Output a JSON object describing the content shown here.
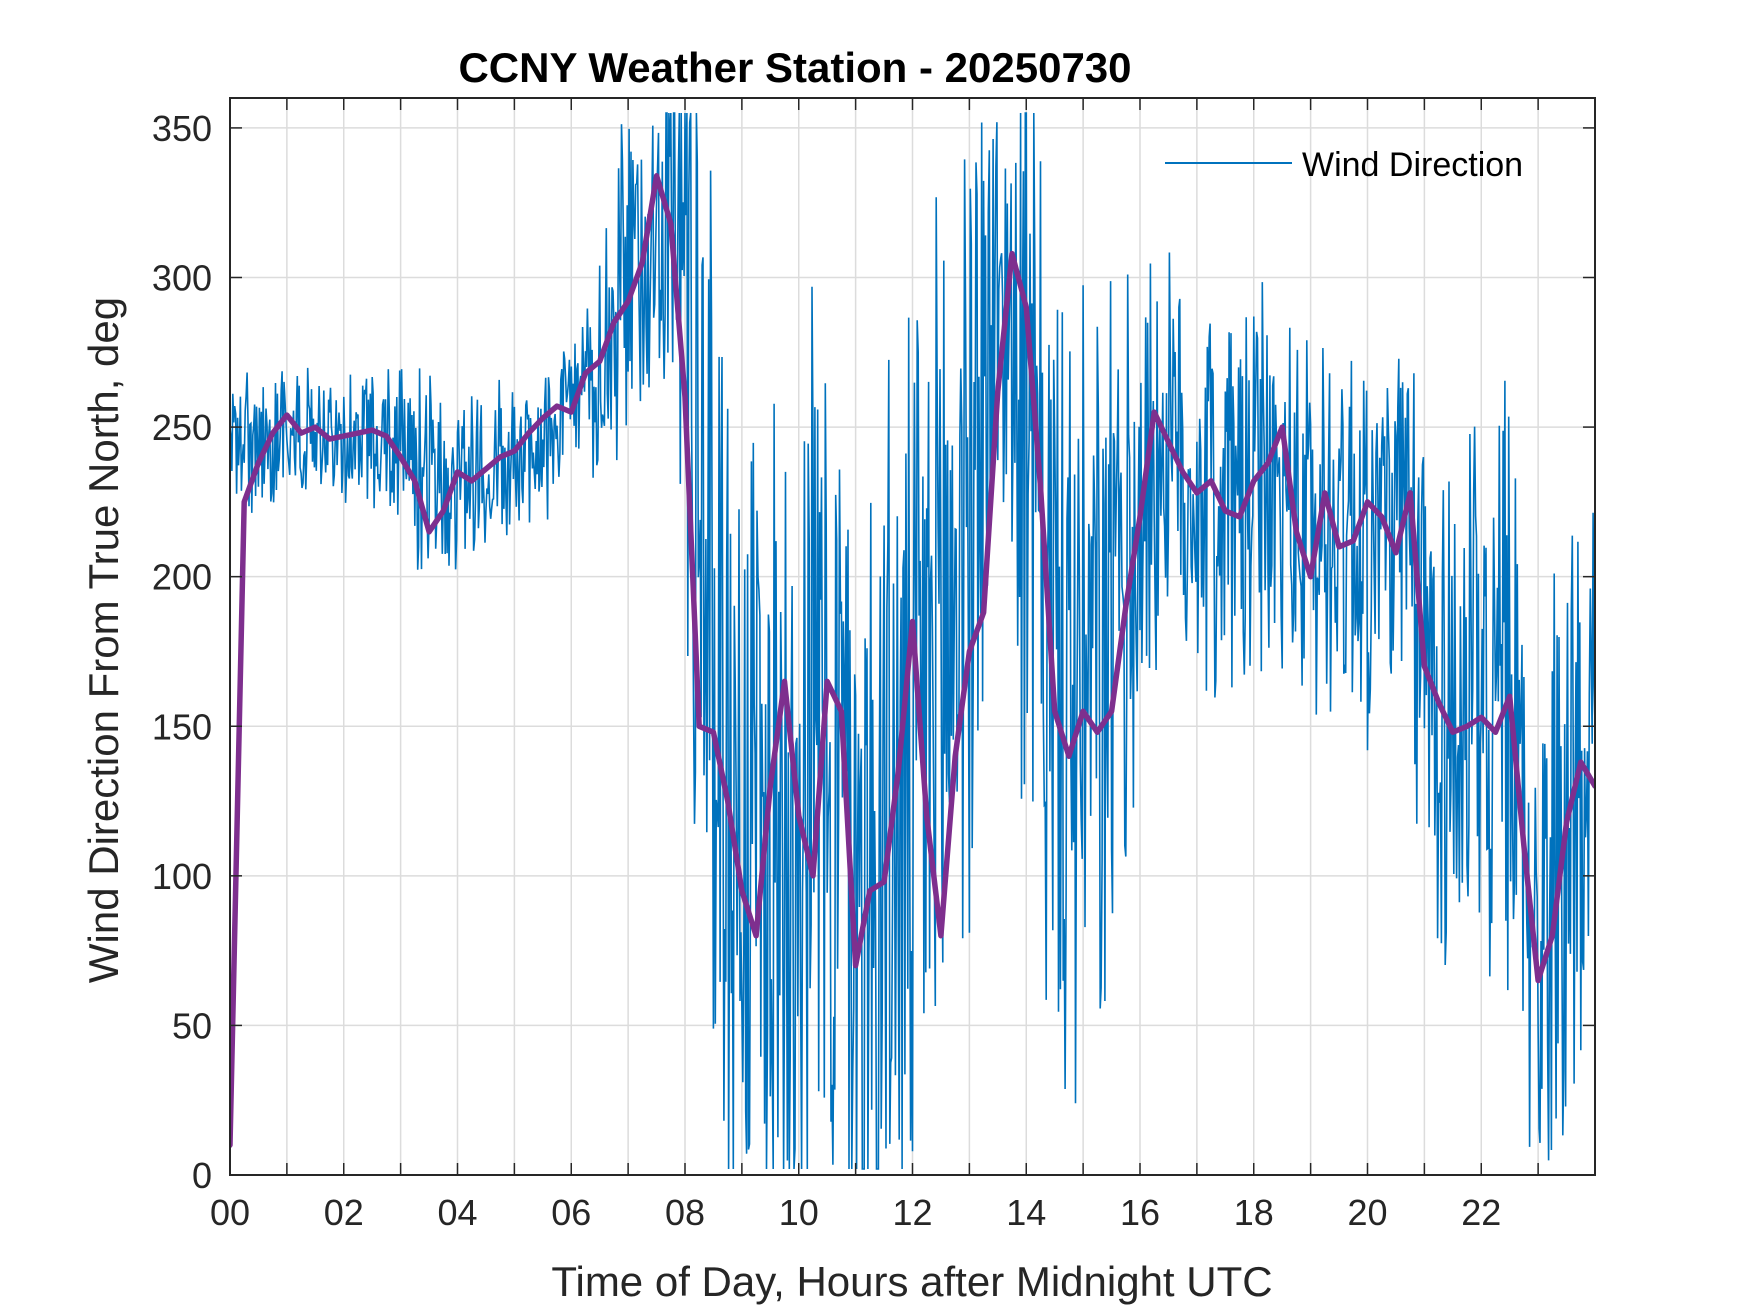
{
  "chart_data": {
    "type": "line",
    "title": "CCNY Weather Station - 20250730",
    "xlabel": "Time of Day, Hours after Midnight UTC",
    "ylabel": "Wind Direction From True North, deg",
    "xlim": [
      0,
      24
    ],
    "ylim": [
      0,
      360
    ],
    "x_ticks": [
      0,
      2,
      4,
      6,
      8,
      10,
      12,
      14,
      16,
      18,
      20,
      22
    ],
    "x_tick_labels": [
      "00",
      "02",
      "04",
      "06",
      "08",
      "10",
      "12",
      "14",
      "16",
      "18",
      "20",
      "22"
    ],
    "y_ticks": [
      0,
      50,
      100,
      150,
      200,
      250,
      300,
      350
    ],
    "y_tick_labels": [
      "0",
      "50",
      "100",
      "150",
      "200",
      "250",
      "300",
      "350"
    ],
    "grid": true,
    "legend": {
      "position": "top-right",
      "entries": [
        "Wind Direction"
      ]
    },
    "series": [
      {
        "name": "Wind Direction",
        "color": "#0072BD",
        "style": "thin-noisy",
        "x": [
          0,
          0.5,
          1,
          1.5,
          2,
          2.5,
          3,
          3.5,
          4,
          4.5,
          5,
          5.5,
          6,
          6.5,
          7,
          7.5,
          8,
          8.5,
          9,
          9.5,
          10,
          10.5,
          11,
          11.5,
          12,
          12.5,
          13,
          13.5,
          14,
          14.5,
          15,
          15.5,
          16,
          16.5,
          17,
          17.5,
          18,
          18.5,
          19,
          19.5,
          20,
          20.5,
          21,
          21.5,
          22,
          22.5,
          23,
          23.5,
          24
        ],
        "y": [
          245,
          243,
          250,
          248,
          246,
          248,
          245,
          232,
          234,
          236,
          240,
          245,
          255,
          268,
          295,
          322,
          315,
          170,
          120,
          110,
          140,
          150,
          90,
          110,
          120,
          175,
          230,
          295,
          250,
          160,
          150,
          170,
          230,
          240,
          230,
          225,
          230,
          225,
          215,
          220,
          215,
          220,
          175,
          155,
          150,
          155,
          70,
          125,
          130
        ],
        "spread": [
          18,
          20,
          18,
          18,
          18,
          20,
          22,
          35,
          25,
          22,
          22,
          22,
          22,
          30,
          60,
          40,
          120,
          140,
          140,
          140,
          140,
          140,
          140,
          140,
          140,
          140,
          130,
          60,
          120,
          130,
          120,
          110,
          70,
          60,
          60,
          60,
          60,
          60,
          60,
          60,
          60,
          60,
          80,
          80,
          90,
          100,
          80,
          90,
          80
        ]
      },
      {
        "name": "",
        "color": "#7E2F8E",
        "style": "thick-smoothed",
        "x": [
          0,
          0.25,
          0.5,
          0.75,
          1.0,
          1.25,
          1.5,
          1.75,
          2.0,
          2.25,
          2.5,
          2.75,
          3.0,
          3.25,
          3.5,
          3.75,
          4.0,
          4.25,
          4.5,
          4.75,
          5.0,
          5.25,
          5.5,
          5.75,
          6.0,
          6.25,
          6.5,
          6.75,
          7.0,
          7.25,
          7.5,
          7.75,
          8.0,
          8.25,
          8.5,
          8.75,
          9.0,
          9.25,
          9.5,
          9.75,
          10.0,
          10.25,
          10.5,
          10.75,
          11.0,
          11.25,
          11.5,
          11.75,
          12.0,
          12.25,
          12.5,
          12.75,
          13.0,
          13.25,
          13.5,
          13.75,
          14.0,
          14.25,
          14.5,
          14.75,
          15.0,
          15.25,
          15.5,
          15.75,
          16.0,
          16.25,
          16.5,
          16.75,
          17.0,
          17.25,
          17.5,
          17.75,
          18.0,
          18.25,
          18.5,
          18.75,
          19.0,
          19.25,
          19.5,
          19.75,
          20.0,
          20.25,
          20.5,
          20.75,
          21.0,
          21.25,
          21.5,
          21.75,
          22.0,
          22.25,
          22.5,
          22.75,
          23.0,
          23.25,
          23.5,
          23.75,
          24.0
        ],
        "y": [
          10,
          225,
          238,
          248,
          254,
          248,
          250,
          246,
          247,
          248,
          249,
          247,
          240,
          232,
          215,
          222,
          235,
          232,
          236,
          240,
          242,
          248,
          253,
          257,
          255,
          268,
          272,
          285,
          292,
          305,
          334,
          318,
          260,
          150,
          148,
          125,
          95,
          80,
          130,
          165,
          120,
          100,
          165,
          155,
          70,
          95,
          98,
          135,
          185,
          120,
          80,
          140,
          175,
          188,
          262,
          308,
          290,
          230,
          155,
          140,
          155,
          148,
          155,
          190,
          220,
          255,
          245,
          235,
          228,
          232,
          222,
          220,
          232,
          238,
          250,
          215,
          200,
          228,
          210,
          212,
          225,
          220,
          208,
          228,
          170,
          158,
          148,
          150,
          153,
          148,
          160,
          110,
          65,
          80,
          118,
          138,
          130
        ]
      }
    ]
  }
}
